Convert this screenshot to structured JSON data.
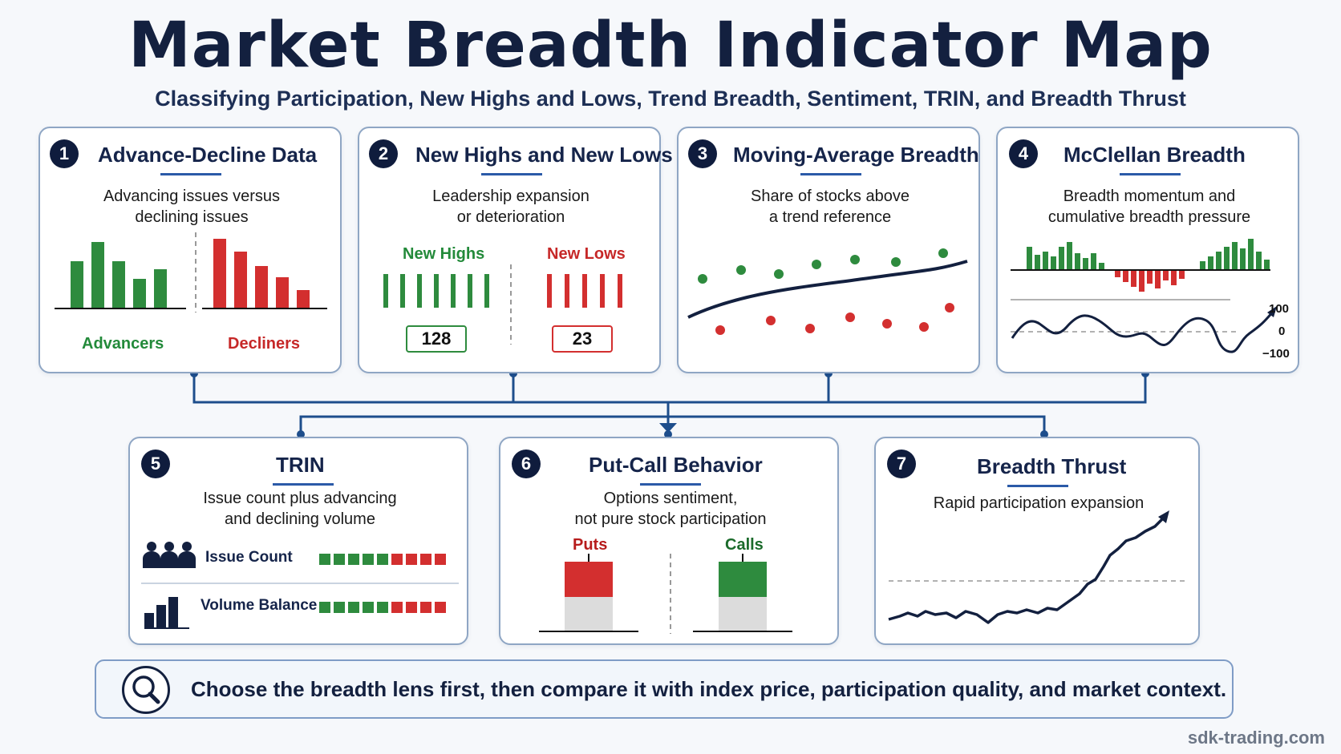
{
  "title": "Market Breadth Indicator Map",
  "subtitle": "Classifying Participation, New Highs and Lows, Trend Breadth, Sentiment, TRIN, and Breadth Thrust",
  "cards": [
    {
      "num": "1",
      "title": "Advance-Decline Data",
      "desc1": "Advancing issues versus",
      "desc2": "declining issues",
      "label_a": "Advancers",
      "label_b": "Decliners"
    },
    {
      "num": "2",
      "title": "New Highs and New Lows",
      "desc1": "Leadership expansion",
      "desc2": "or deterioration",
      "label_a": "New Highs",
      "label_b": "New Lows",
      "value_a": "128",
      "value_b": "23"
    },
    {
      "num": "3",
      "title": "Moving-Average Breadth",
      "desc1": "Share of stocks above",
      "desc2": "a trend reference"
    },
    {
      "num": "4",
      "title": "McClellan Breadth",
      "desc1": "Breadth momentum and",
      "desc2": "cumulative breadth pressure",
      "y_top": "100",
      "y_mid": "0",
      "y_bot": "−100"
    },
    {
      "num": "5",
      "title": "TRIN",
      "desc1": "Issue count plus advancing",
      "desc2": "and declining volume",
      "row1": "Issue Count",
      "row2": "Volume Balance"
    },
    {
      "num": "6",
      "title": "Put-Call Behavior",
      "desc1": "Options sentiment,",
      "desc2": "not pure stock participation",
      "label_a": "Puts",
      "label_b": "Calls"
    },
    {
      "num": "7",
      "title": "Breadth Thrust",
      "desc1": "Rapid participation expansion"
    }
  ],
  "footer": "Choose the breadth lens first, then compare it with index price, participation quality, and market context.",
  "brand": "sdk-trading.com",
  "colors": {
    "navy": "#13203f",
    "accent": "#2b5aa8",
    "green": "#2e8b3e",
    "red": "#d32f2f",
    "border": "#8fa6c4"
  },
  "icons": [
    "magnifier-icon",
    "people-icon",
    "bar-chart-icon"
  ]
}
